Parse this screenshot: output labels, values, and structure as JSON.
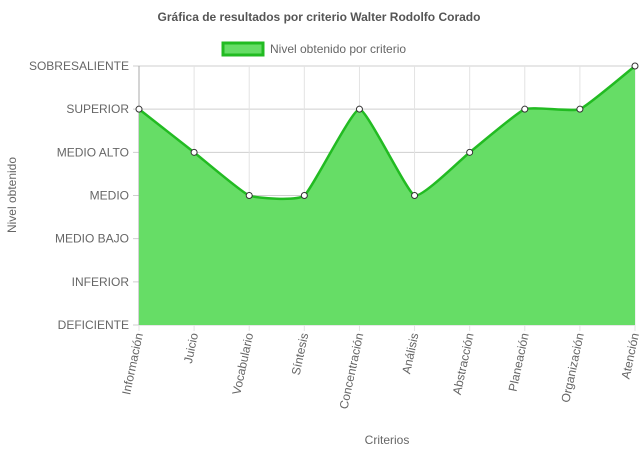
{
  "chart_data": {
    "type": "area",
    "title": "Gráfica de resultados por criterio Walter Rodolfo Corado",
    "xlabel": "Criterios",
    "ylabel": "Nivel obtenido",
    "legend": {
      "label": "Nivel obtenido por criterio",
      "position": "top"
    },
    "levels": [
      "DEFICIENTE",
      "INFERIOR",
      "MEDIO BAJO",
      "MEDIO",
      "MEDIO ALTO",
      "SUPERIOR",
      "SOBRESALIENTE"
    ],
    "categories": [
      "Información",
      "Juicio",
      "Vocabulario",
      "Síntesis",
      "Concentración",
      "Análisis",
      "Abstracción",
      "Planeación",
      "Organización",
      "Atención"
    ],
    "series": [
      {
        "name": "Nivel obtenido por criterio",
        "values": [
          "SUPERIOR",
          "MEDIO ALTO",
          "MEDIO",
          "MEDIO",
          "SUPERIOR",
          "MEDIO",
          "MEDIO ALTO",
          "SUPERIOR",
          "SUPERIOR",
          "SOBRESALIENTE"
        ]
      }
    ],
    "ylim": [
      "DEFICIENTE",
      "SOBRESALIENTE"
    ],
    "grid": true,
    "colors": {
      "fill": "#66dd66",
      "line": "#22bb22"
    }
  }
}
